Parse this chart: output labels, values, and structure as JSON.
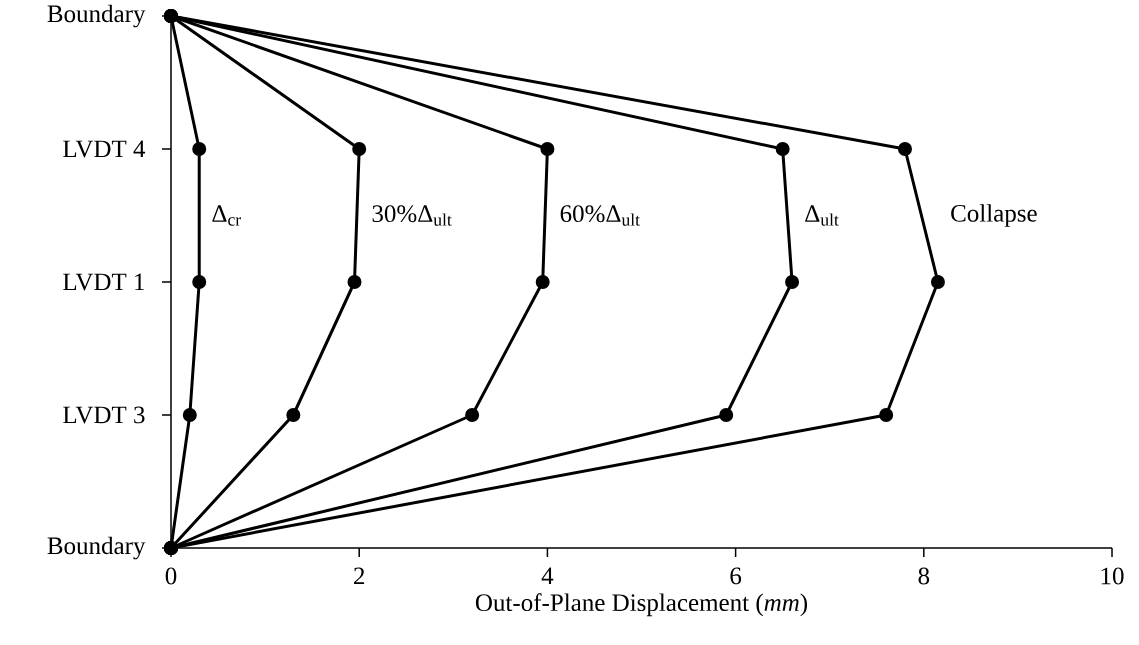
{
  "chart_data": {
    "type": "line",
    "orientation": "horizontal",
    "xlabel": "Out-of-Plane Displacement (*mm*)",
    "xlim": [
      0,
      10
    ],
    "xticks": [
      0,
      2,
      4,
      6,
      8,
      10
    ],
    "categories": [
      "Boundary",
      "LVDT 4",
      "LVDT 1",
      "LVDT 3",
      "Boundary"
    ],
    "marker": "circle",
    "line_style": "solid",
    "series": [
      {
        "name": "Δ$_{cr}$",
        "color": "#000000",
        "values": [
          0,
          0.3,
          0.3,
          0.2,
          0
        ]
      },
      {
        "name": "30%Δ$_{ult}$",
        "color": "#000000",
        "values": [
          0,
          2.0,
          1.95,
          1.3,
          0
        ]
      },
      {
        "name": "60%Δ$_{ult}$",
        "color": "#000000",
        "values": [
          0,
          4.0,
          3.95,
          3.2,
          0
        ]
      },
      {
        "name": "Δ$_{ult}$",
        "color": "#000000",
        "values": [
          0,
          6.5,
          6.6,
          5.9,
          0
        ]
      },
      {
        "name": "Collapse",
        "color": "#000000",
        "values": [
          0,
          7.8,
          8.15,
          7.6,
          0
        ]
      }
    ]
  }
}
